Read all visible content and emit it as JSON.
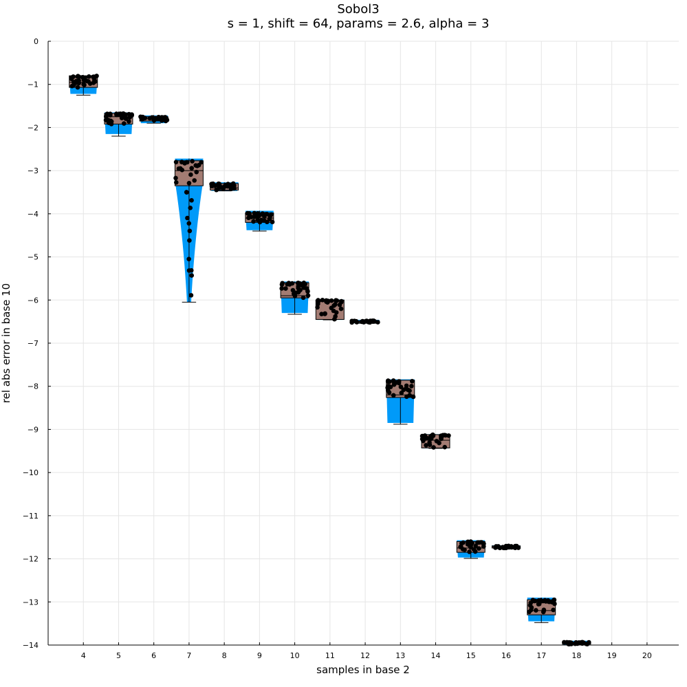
{
  "chart_data": {
    "type": "box",
    "title": "Sobol3",
    "subtitle": "s = 1, shift = 64, params = 2.6, alpha = 3",
    "xlabel": "samples in base 2",
    "ylabel": "rel abs error in base 10",
    "xlim": [
      3.0,
      20.9
    ],
    "ylim": [
      -14,
      0
    ],
    "x_ticks": [
      "4",
      "5",
      "6",
      "7",
      "8",
      "9",
      "10",
      "11",
      "12",
      "13",
      "14",
      "15",
      "16",
      "17",
      "18",
      "19",
      "20"
    ],
    "y_ticks": [
      "0",
      "−1",
      "−2",
      "−3",
      "−4",
      "−5",
      "−6",
      "−7",
      "−8",
      "−9",
      "−10",
      "−11",
      "−12",
      "−13",
      "−14"
    ],
    "grid": true,
    "legend": "none",
    "colors": {
      "violin": "#009af9",
      "box": "#a37c73",
      "points": "#000000",
      "grid": "#e5e5e5"
    },
    "groups": [
      {
        "x": 4,
        "min": -1.25,
        "q1": -1.07,
        "median": -0.95,
        "q3": -0.8,
        "max": -0.78,
        "violin": [
          -1.22,
          -0.8
        ]
      },
      {
        "x": 5,
        "min": -2.2,
        "q1": -1.92,
        "median": -1.75,
        "q3": -1.67,
        "max": -1.63,
        "violin": [
          -2.15,
          -1.65
        ]
      },
      {
        "x": 6,
        "min": -1.9,
        "q1": -1.85,
        "median": -1.8,
        "q3": -1.75,
        "max": -1.71,
        "violin": [
          -1.9,
          -1.72
        ]
      },
      {
        "x": 7,
        "min": -6.05,
        "q1": -3.35,
        "median": -3.0,
        "q3": -2.77,
        "max": -2.72,
        "violin": [
          -6.05,
          -2.72
        ]
      },
      {
        "x": 8,
        "min": -3.47,
        "q1": -3.45,
        "median": -3.4,
        "q3": -3.3,
        "max": -3.27,
        "violin": [
          -3.47,
          -3.27
        ]
      },
      {
        "x": 9,
        "min": -4.4,
        "q1": -4.2,
        "median": -4.1,
        "q3": -3.98,
        "max": -3.93,
        "violin": [
          -4.38,
          -3.93
        ]
      },
      {
        "x": 10,
        "min": -6.33,
        "q1": -5.95,
        "median": -5.9,
        "q3": -5.6,
        "max": -5.57,
        "violin": [
          -6.3,
          -5.57
        ]
      },
      {
        "x": 11,
        "min": -6.46,
        "q1": -6.45,
        "median": -6.45,
        "q3": -6.0,
        "max": -5.99,
        "violin": [
          -6.46,
          -5.99
        ]
      },
      {
        "x": 12,
        "min": -6.54,
        "q1": -6.52,
        "median": -6.5,
        "q3": -6.48,
        "max": -6.46,
        "violin": [
          -6.54,
          -6.46
        ]
      },
      {
        "x": 13,
        "min": -8.88,
        "q1": -8.26,
        "median": -8.2,
        "q3": -7.86,
        "max": -7.84,
        "violin": [
          -8.85,
          -7.84
        ]
      },
      {
        "x": 14,
        "min": -9.44,
        "q1": -9.43,
        "median": -9.25,
        "q3": -9.12,
        "max": -9.11,
        "violin": [
          -9.44,
          -9.11
        ]
      },
      {
        "x": 15,
        "min": -11.99,
        "q1": -11.85,
        "median": -11.75,
        "q3": -11.6,
        "max": -11.57,
        "violin": [
          -11.97,
          -11.57
        ]
      },
      {
        "x": 16,
        "min": -11.76,
        "q1": -11.75,
        "median": -11.72,
        "q3": -11.7,
        "max": -11.69,
        "violin": [
          -11.76,
          -11.69
        ]
      },
      {
        "x": 17,
        "min": -13.48,
        "q1": -13.3,
        "median": -13.2,
        "q3": -12.95,
        "max": -12.9,
        "violin": [
          -13.45,
          -12.9
        ]
      },
      {
        "x": 18,
        "min": -14.0,
        "q1": -13.98,
        "median": -13.96,
        "q3": -13.93,
        "max": -13.9,
        "violin": [
          -14.0,
          -13.9
        ]
      }
    ]
  }
}
